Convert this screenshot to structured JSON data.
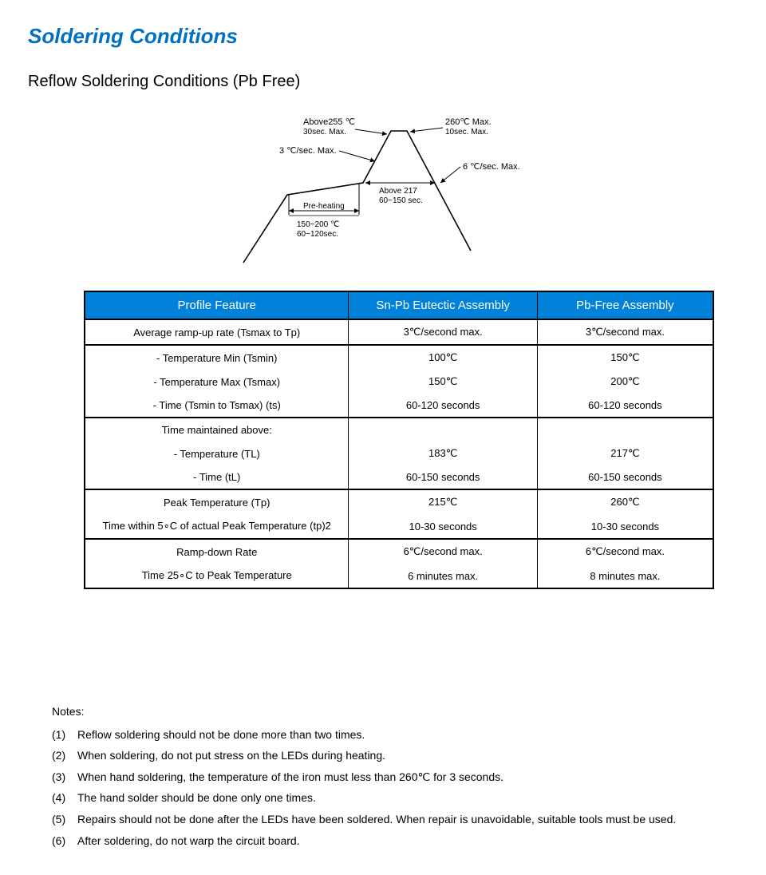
{
  "heading": {
    "title": "Soldering Conditions",
    "subtitle": "Reflow Soldering Conditions (Pb Free)"
  },
  "diagram": {
    "labels": {
      "peak_top_left": "Above255 ℃",
      "peak_top_left2": "30sec. Max.",
      "peak_top_right": "260℃ Max.",
      "peak_top_right2": "10sec. Max.",
      "ramp_up": "3 ℃/sec. Max.",
      "ramp_down": "6 ℃/sec. Max.",
      "above217": "Above 217",
      "above217_time": "60~150 sec.",
      "preheat": "Pre-heating",
      "preheat_temp": "150~200 ℃",
      "preheat_time": "60~120sec."
    },
    "stroke": "#000000",
    "stroke_width": 1.6
  },
  "table": {
    "header_bg": "#0082db",
    "header_fg": "#ffffff",
    "columns": [
      "Profile Feature",
      "Sn-Pb Eutectic Assembly",
      "Pb-Free Assembly"
    ],
    "rows": [
      {
        "cells": [
          "Average ramp-up rate (Tsmax to Tp)",
          "3℃/second max.",
          "3℃/second max."
        ],
        "sep": true
      },
      {
        "cells": [
          "- Temperature Min (Tsmin)",
          "100℃",
          "150℃"
        ],
        "sep": false
      },
      {
        "cells": [
          "- Temperature Max (Tsmax)",
          "150℃",
          "200℃"
        ],
        "sep": false
      },
      {
        "cells": [
          "- Time (Tsmin to Tsmax) (ts)",
          "60-120 seconds",
          "60-120 seconds"
        ],
        "sep": true
      },
      {
        "cells": [
          "Time maintained above:",
          "",
          ""
        ],
        "sep": false
      },
      {
        "cells": [
          "- Temperature (TL)",
          "183℃",
          "217℃"
        ],
        "sep": false
      },
      {
        "cells": [
          "- Time (tL)",
          "60-150 seconds",
          "60-150 seconds"
        ],
        "sep": true
      },
      {
        "cells": [
          "Peak Temperature (Tp)",
          "215℃",
          "260℃"
        ],
        "sep": false
      },
      {
        "cells": [
          "Time within 5∘C of actual Peak Temperature (tp)2",
          "10-30 seconds",
          "10-30 seconds"
        ],
        "sep": true
      },
      {
        "cells": [
          "Ramp-down Rate",
          "6℃/second max.",
          "6℃/second max."
        ],
        "sep": false
      },
      {
        "cells": [
          "Time 25∘C to Peak Temperature",
          "6 minutes max.",
          "8 minutes max."
        ],
        "sep": false
      }
    ]
  },
  "notes": {
    "heading": "Notes:",
    "items": [
      "Reflow soldering should not be done more than two times.",
      "When soldering, do not put stress on the LEDs during heating.",
      "When hand soldering, the temperature of the iron must less than 260℃  for 3 seconds.",
      "The hand solder should be done only one times.",
      "Repairs should not be done after the LEDs have been soldered. When repair is unavoidable, suitable tools must be used.",
      "After soldering, do not warp the circuit board."
    ]
  }
}
